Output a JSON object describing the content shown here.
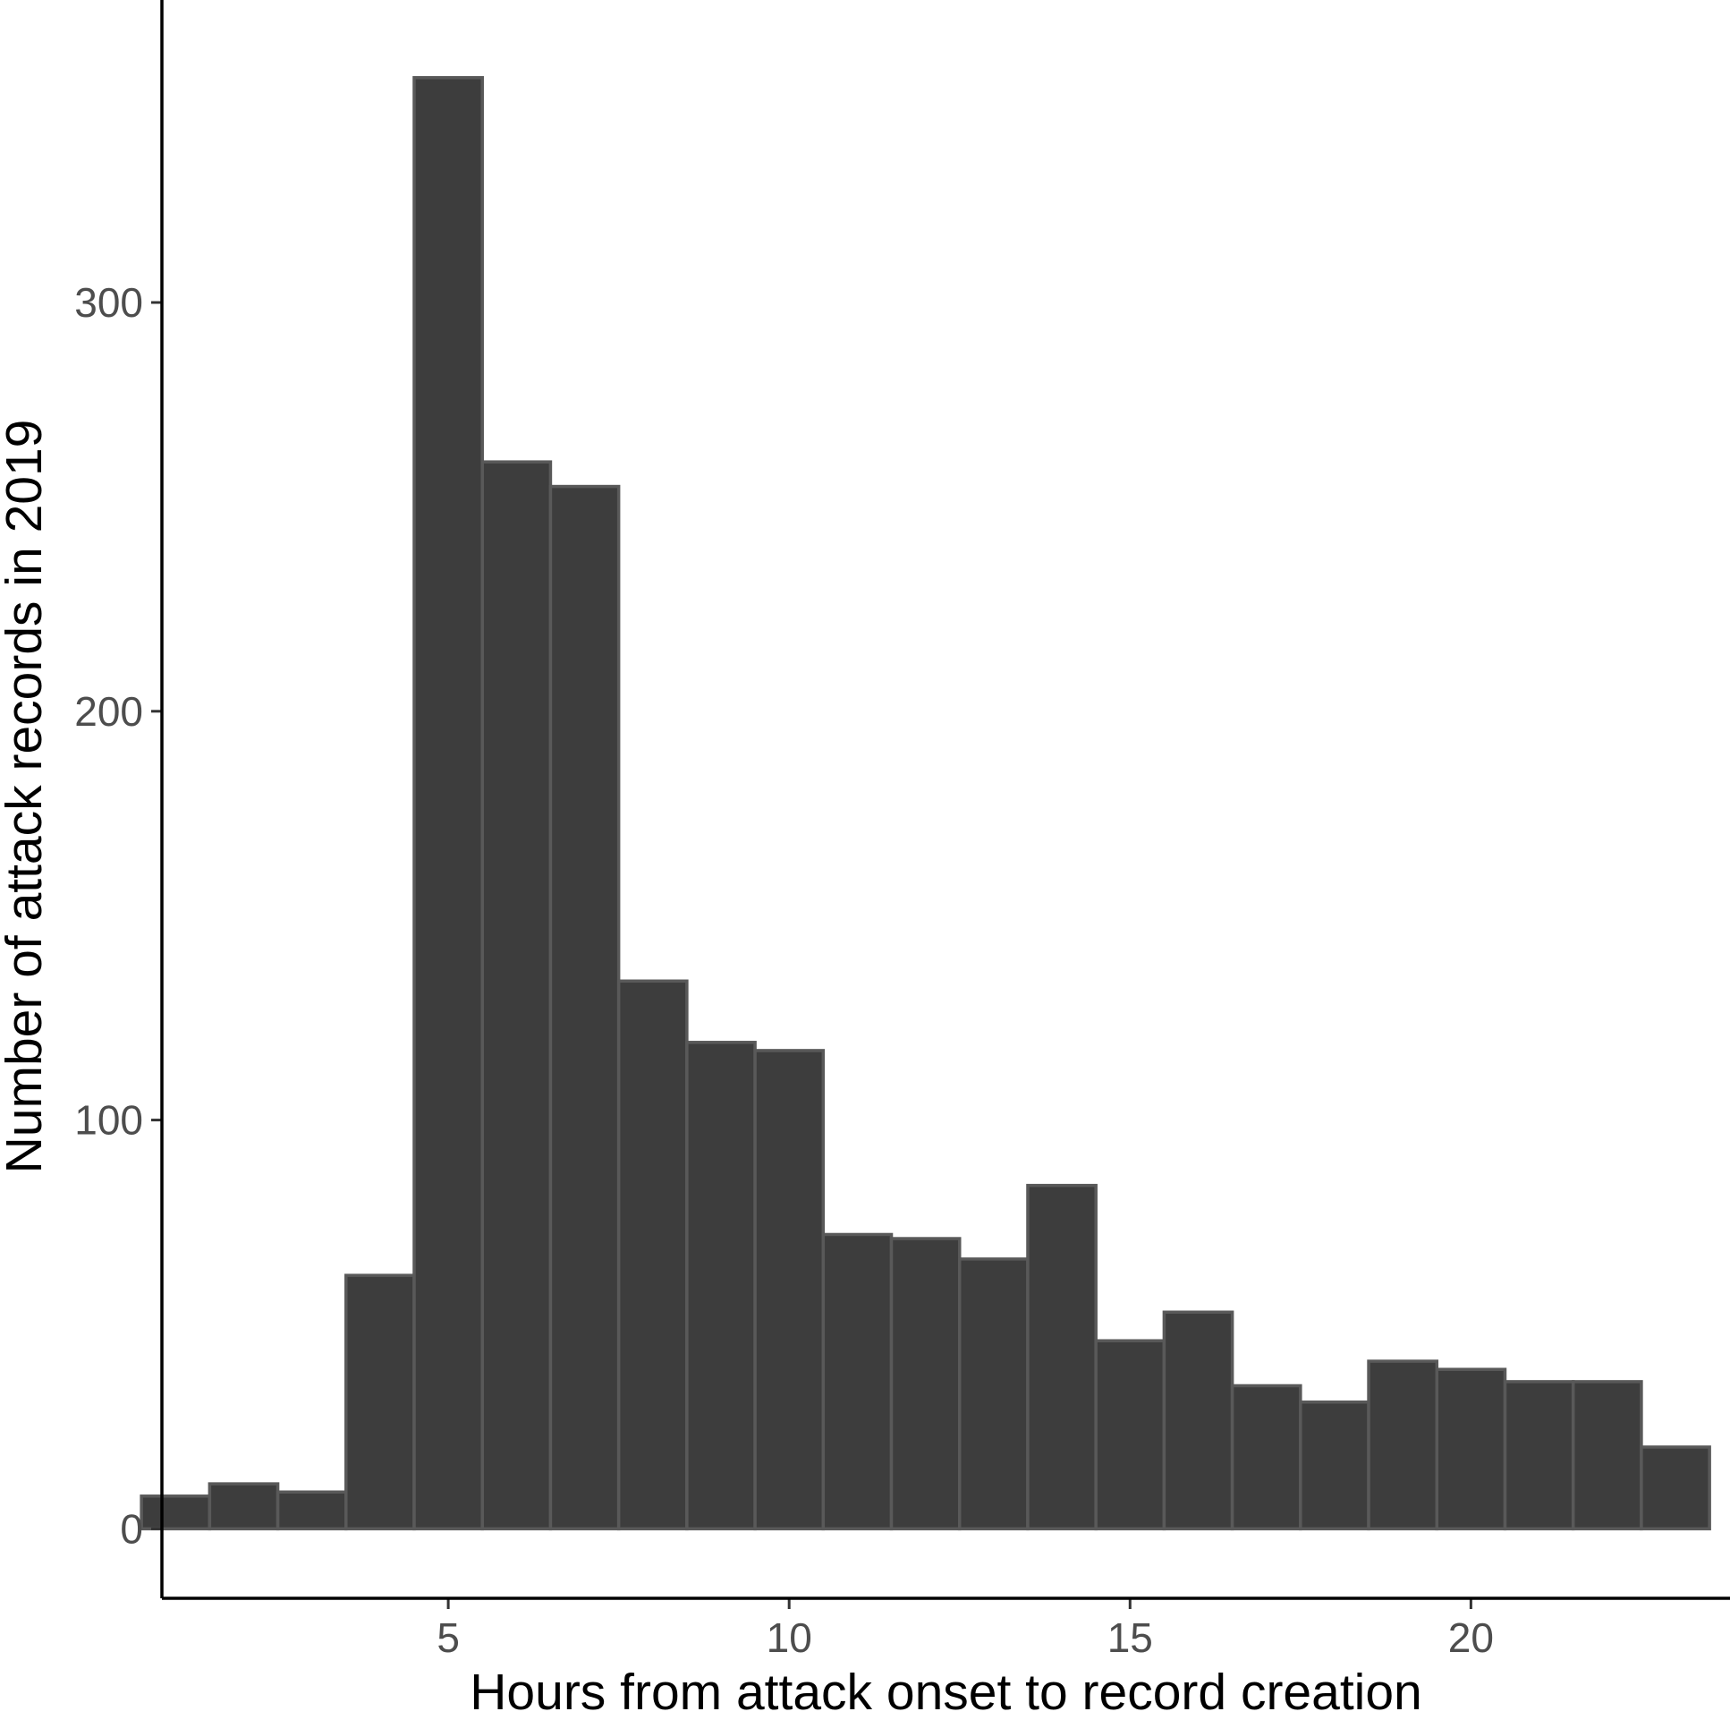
{
  "chart_data": {
    "type": "bar",
    "subtype": "histogram",
    "xlabel": "Hours from attack onset to record creation",
    "ylabel": "Number of attack records in 2019",
    "xlim": [
      0.8,
      23.8
    ],
    "ylim": [
      -17,
      374
    ],
    "xticks": [
      5,
      10,
      15,
      20
    ],
    "yticks": [
      0,
      100,
      200,
      300
    ],
    "bin_width": 1,
    "bins": [
      {
        "x": 1,
        "count": 8
      },
      {
        "x": 2,
        "count": 11
      },
      {
        "x": 3,
        "count": 9
      },
      {
        "x": 4,
        "count": 62
      },
      {
        "x": 5,
        "count": 355
      },
      {
        "x": 6,
        "count": 261
      },
      {
        "x": 7,
        "count": 255
      },
      {
        "x": 8,
        "count": 134
      },
      {
        "x": 9,
        "count": 119
      },
      {
        "x": 10,
        "count": 117
      },
      {
        "x": 11,
        "count": 72
      },
      {
        "x": 12,
        "count": 71
      },
      {
        "x": 13,
        "count": 66
      },
      {
        "x": 14,
        "count": 84
      },
      {
        "x": 15,
        "count": 46
      },
      {
        "x": 16,
        "count": 53
      },
      {
        "x": 17,
        "count": 35
      },
      {
        "x": 18,
        "count": 31
      },
      {
        "x": 19,
        "count": 41
      },
      {
        "x": 20,
        "count": 39
      },
      {
        "x": 21,
        "count": 36
      },
      {
        "x": 22,
        "count": 36
      },
      {
        "x": 23,
        "count": 20
      }
    ],
    "grid": false,
    "legend": "none",
    "bar_color": "#3d3d3d",
    "bar_outline_color": "#595959"
  }
}
